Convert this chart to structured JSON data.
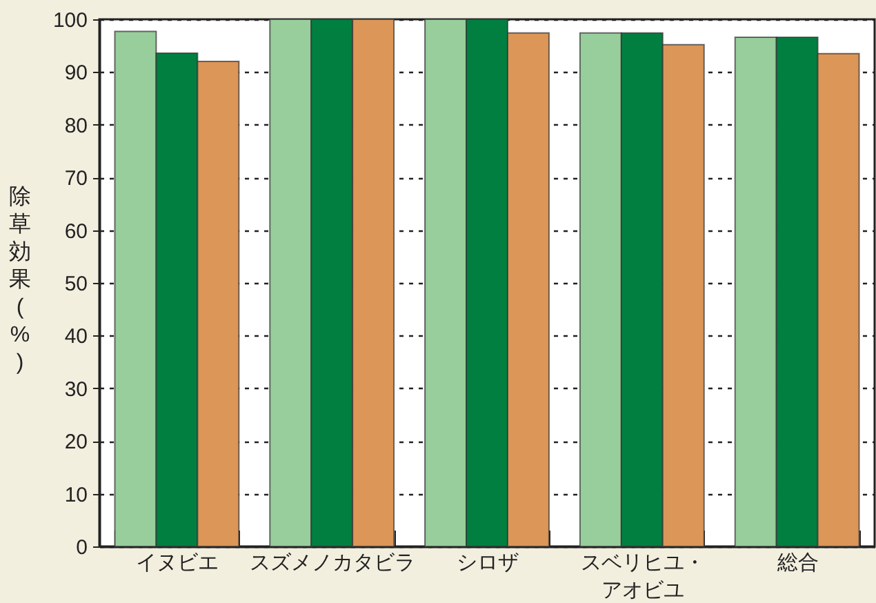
{
  "chart_data": {
    "type": "bar",
    "ylabel": "除草効果(%)",
    "categories": [
      "イヌビエ",
      "スズメノカタビラ",
      "シロザ",
      "スベリヒユ・アオビユ",
      "総合"
    ],
    "series": [
      {
        "color": "#98cd9c",
        "values": [
          97.7,
          100,
          100,
          97.4,
          96.6
        ]
      },
      {
        "color": "#007f41",
        "values": [
          93.6,
          100,
          100,
          97.4,
          96.6
        ]
      },
      {
        "color": "#dc9658",
        "values": [
          92.0,
          100,
          97.4,
          95.2,
          93.5
        ]
      }
    ],
    "ylim": [
      0,
      100
    ],
    "yticks": [
      0,
      10,
      20,
      30,
      40,
      50,
      60,
      70,
      80,
      90,
      100
    ],
    "grid": "y"
  }
}
